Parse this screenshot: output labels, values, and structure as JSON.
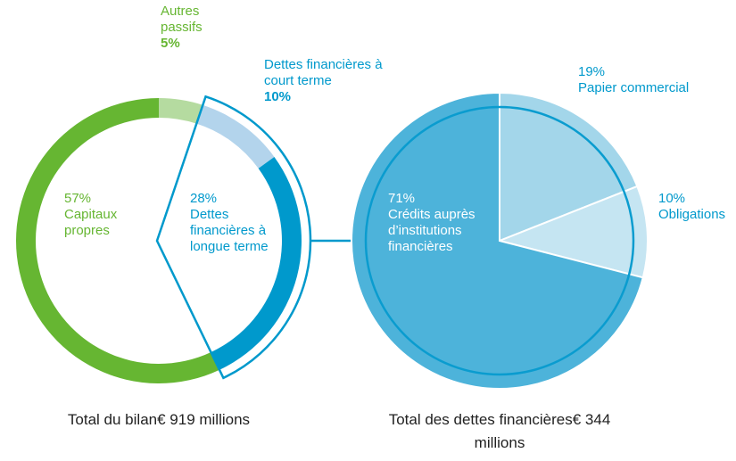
{
  "chart_data": [
    {
      "type": "donut",
      "title": "Total du bilan",
      "subtitle": "€ 919 millions",
      "categories": [
        "Autres passifs",
        "Dettes financières à court terme",
        "Dettes financières à longue terme",
        "Capitaux propres"
      ],
      "values": [
        5,
        10,
        28,
        57
      ],
      "value_labels": [
        "5%",
        "10%",
        "28%",
        "57%"
      ],
      "colors": [
        "#b5dba0",
        "#b3d4ec",
        "#0099cc",
        "#66b632"
      ]
    },
    {
      "type": "pie",
      "title": "Total des dettes financières",
      "subtitle": "€ 344 millions",
      "categories": [
        "Papier commercial",
        "Obligations",
        "Crédits auprès d’institutions financières"
      ],
      "values": [
        19,
        10,
        71
      ],
      "value_labels": [
        "19%",
        "10%",
        "71%"
      ],
      "colors": [
        "#a3d6ea",
        "#c5e5f2",
        "#4db3da"
      ]
    }
  ]
}
